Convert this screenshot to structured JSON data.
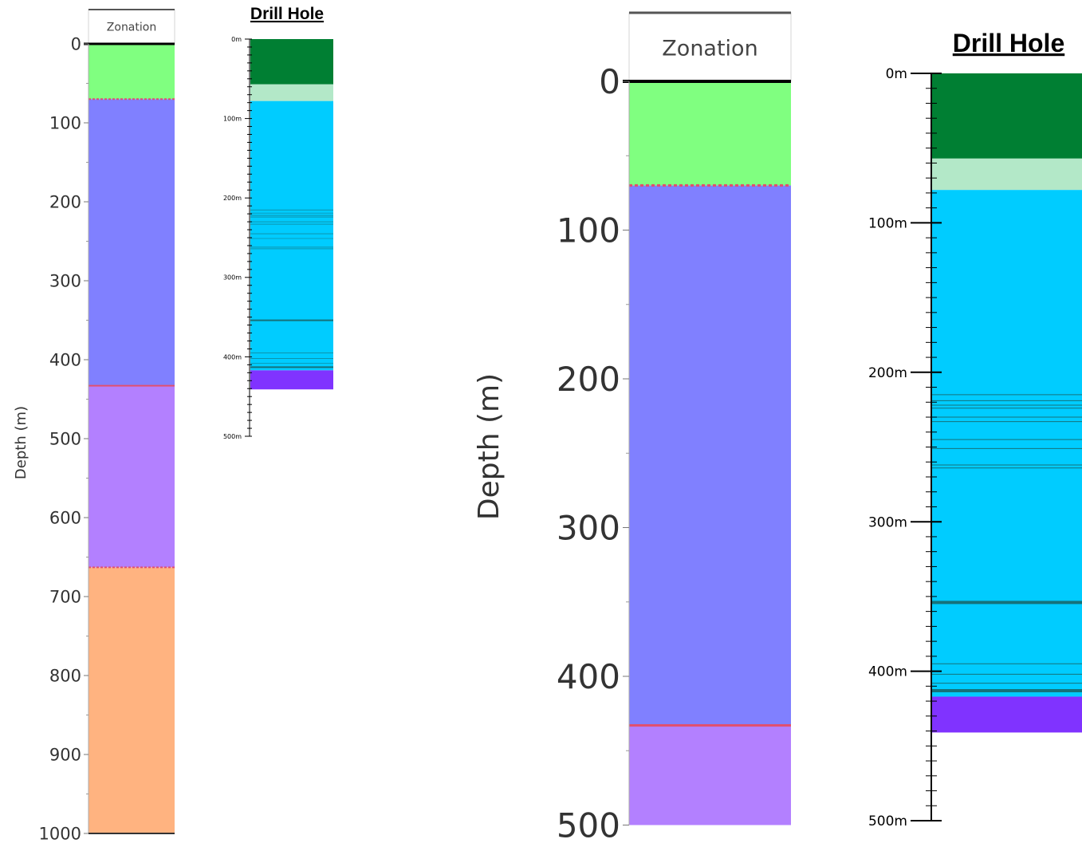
{
  "zonation": {
    "header": "Zonation",
    "axis_label": "Depth (m)",
    "zones": [
      {
        "top": 0,
        "bottom": 70,
        "color": "#80ff80"
      },
      {
        "top": 70,
        "bottom": 433,
        "color": "#8080ff"
      },
      {
        "top": 433,
        "bottom": 663,
        "color": "#b380ff"
      },
      {
        "top": 663,
        "bottom": 1000,
        "color": "#ffb380"
      }
    ],
    "boundaries": [
      {
        "depth": 70,
        "style": "dashed"
      },
      {
        "depth": 433,
        "style": "solid"
      },
      {
        "depth": 663,
        "style": "dashed"
      }
    ],
    "boundary_color": "#e05070"
  },
  "drill_hole": {
    "title": "Drill Hole",
    "intervals": [
      {
        "top": 0,
        "bottom": 57,
        "color": "#007f33"
      },
      {
        "top": 57,
        "bottom": 78,
        "color": "#b3e8c8"
      },
      {
        "top": 78,
        "bottom": 417,
        "color": "#00ccff"
      },
      {
        "top": 417,
        "bottom": 441,
        "color": "#8033ff"
      }
    ],
    "thin_lines": [
      215,
      219,
      222,
      224,
      230,
      233,
      245,
      251,
      262,
      264,
      395,
      402,
      408
    ],
    "thick_lines": [
      354,
      413
    ],
    "line_color": "#16727a"
  },
  "panels": [
    {
      "label_every": 100,
      "ticks": [
        "0",
        "100",
        "200",
        "300",
        "400",
        "500",
        "600",
        "700",
        "800",
        "900",
        "1000"
      ],
      "show_axis_title": false
    },
    {
      "label_every": 100,
      "ticks": [
        "0m",
        "100m",
        "200m",
        "300m",
        "400m",
        "500m"
      ]
    },
    {
      "label_every": 100,
      "ticks": [
        "0",
        "100",
        "200",
        "300",
        "400",
        "500"
      ],
      "show_axis_title": true
    },
    {
      "label_every": 100,
      "ticks": [
        "0m",
        "100m",
        "200m",
        "300m",
        "400m",
        "500m"
      ]
    }
  ]
}
